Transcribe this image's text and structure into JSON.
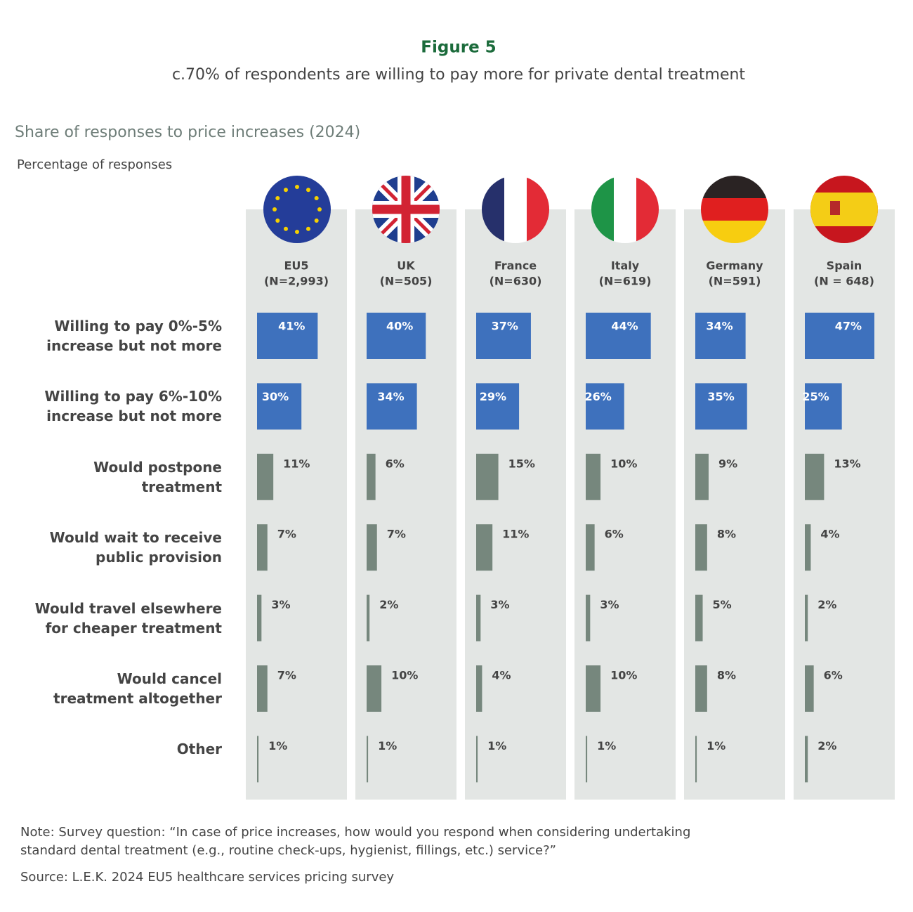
{
  "chart_data": {
    "type": "bar",
    "figure_label": "Figure 5",
    "title": "c.70% of respondents are willing to pay more for private dental treatment",
    "subtitle": "Share of responses to price increases (2024)",
    "axis_label": "Percentage of responses",
    "categories": [
      "Willing to pay 0%-5%\nincrease but not more",
      "Willing to pay 6%-10%\nincrease but not more",
      "Would postpone\ntreatment",
      "Would wait to receive\npublic provision",
      "Would travel elsewhere\nfor cheaper treatment",
      "Would cancel\ntreatment altogether",
      "Other"
    ],
    "category_colors": [
      "#3e71bd",
      "#3e71bd",
      "#76877d",
      "#76877d",
      "#76877d",
      "#76877d",
      "#76877d"
    ],
    "xlim": [
      0,
      47
    ],
    "series": [
      {
        "name": "EU5",
        "sample": "(N=2,993)",
        "values": [
          41,
          30,
          11,
          7,
          3,
          7,
          1
        ],
        "value_labels": [
          "41%",
          "30%",
          "11%",
          "7%",
          "3%",
          "7%",
          "1%"
        ]
      },
      {
        "name": "UK",
        "sample": "(N=505)",
        "values": [
          40,
          34,
          6,
          7,
          2,
          10,
          1
        ],
        "value_labels": [
          "40%",
          "34%",
          "6%",
          "7%",
          "2%",
          "10%",
          "1%"
        ]
      },
      {
        "name": "France",
        "sample": "(N=630)",
        "values": [
          37,
          29,
          15,
          11,
          3,
          4,
          1
        ],
        "value_labels": [
          "37%",
          "29%",
          "15%",
          "11%",
          "3%",
          "4%",
          "1%"
        ]
      },
      {
        "name": "Italy",
        "sample": "(N=619)",
        "values": [
          44,
          26,
          10,
          6,
          3,
          10,
          1
        ],
        "value_labels": [
          "44%",
          "26%",
          "10%",
          "6%",
          "3%",
          "10%",
          "1%"
        ]
      },
      {
        "name": "Germany",
        "sample": "(N=591)",
        "values": [
          34,
          35,
          9,
          8,
          5,
          8,
          1
        ],
        "value_labels": [
          "34%",
          "35%",
          "9%",
          "8%",
          "5%",
          "8%",
          "1%"
        ]
      },
      {
        "name": "Spain",
        "sample": "(N = 648)",
        "values": [
          47,
          25,
          13,
          4,
          2,
          6,
          2
        ],
        "value_labels": [
          "47%",
          "25%",
          "13%",
          "4%",
          "2%",
          "6%",
          "2%"
        ]
      }
    ],
    "note": "Note: Survey question: “In case of price increases, how would you respond when considering undertaking\nstandard dental treatment (e.g., routine check-ups, hygienist, fillings, etc.) service?”",
    "source": "Source: L.E.K. 2024 EU5 healthcare services pricing survey"
  }
}
